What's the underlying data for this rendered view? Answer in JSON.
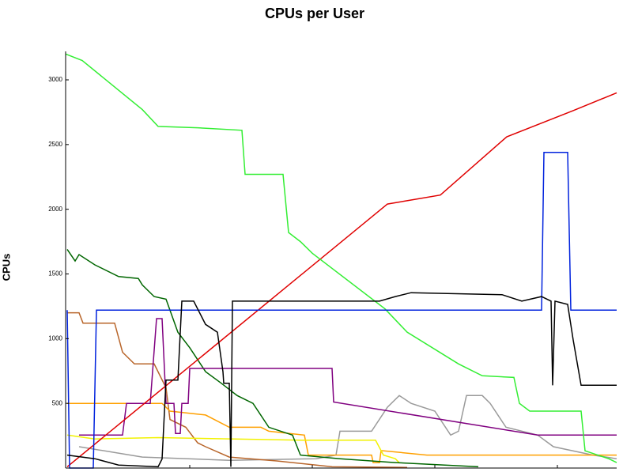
{
  "chart_data": {
    "type": "line",
    "title": "CPUs per User",
    "y_label": "CPUs",
    "xlim": [
      0,
      697
    ],
    "ylim": [
      0,
      3220
    ],
    "yticks": [
      500,
      1000,
      1500,
      2000,
      2500,
      3000
    ],
    "series": [
      {
        "color": "#9a9a9a",
        "x": [
          17,
          97,
          207,
          317,
          342,
          347,
          387,
          407,
          422,
          437,
          467,
          487,
          497,
          507,
          527,
          537,
          557,
          597,
          617,
          667,
          697
        ],
        "values": [
          165,
          85,
          60,
          72,
          100,
          285,
          285,
          470,
          560,
          500,
          440,
          255,
          285,
          560,
          560,
          500,
          315,
          255,
          165,
          100,
          72
        ]
      },
      {
        "color": "#b8652a",
        "x": [
          2,
          17,
          22,
          62,
          72,
          87,
          112,
          127,
          132,
          152,
          167,
          177,
          207,
          267,
          337,
          432
        ],
        "values": [
          1200,
          1200,
          1120,
          1120,
          895,
          805,
          805,
          620,
          375,
          315,
          195,
          165,
          85,
          55,
          10,
          5
        ]
      },
      {
        "color": "#ffa000",
        "x": [
          2,
          122,
          132,
          177,
          207,
          247,
          257,
          302,
          307,
          387,
          389,
          397,
          399,
          457,
          697
        ],
        "values": [
          500,
          500,
          440,
          410,
          315,
          315,
          285,
          255,
          100,
          100,
          42,
          42,
          135,
          100,
          100
        ]
      },
      {
        "color": "#f2f200",
        "x": [
          2,
          37,
          117,
          297,
          392,
          402,
          417,
          422
        ],
        "values": [
          255,
          225,
          235,
          215,
          215,
          100,
          72,
          42
        ]
      },
      {
        "color": "#006600",
        "x": [
          2,
          12,
          17,
          37,
          67,
          92,
          97,
          112,
          127,
          142,
          157,
          177,
          197,
          217,
          237,
          257,
          287,
          297,
          347,
          417,
          522
        ],
        "values": [
          1690,
          1600,
          1650,
          1570,
          1480,
          1465,
          1415,
          1325,
          1305,
          1050,
          930,
          745,
          655,
          560,
          500,
          315,
          255,
          100,
          72,
          42,
          10
        ]
      },
      {
        "color": "#800080",
        "x": [
          17,
          72,
          77,
          107,
          115,
          122,
          127,
          137,
          139,
          145,
          147,
          155,
          157,
          337,
          339,
          597,
          697
        ],
        "values": [
          255,
          255,
          500,
          500,
          1155,
          1155,
          500,
          500,
          267,
          267,
          500,
          500,
          770,
          770,
          510,
          255,
          255
        ]
      },
      {
        "color": "#e00000",
        "x": [
          2,
          407,
          474,
          558,
          641,
          697
        ],
        "values": [
          10,
          2040,
          2110,
          2560,
          2760,
          2900
        ]
      },
      {
        "color": "#33ee33",
        "x": [
          0,
          21,
          97,
          117,
          167,
          223,
          227,
          275,
          282,
          297,
          312,
          404,
          432,
          497,
          527,
          567,
          574,
          587,
          652,
          657,
          687,
          697
        ],
        "values": [
          3200,
          3150,
          2770,
          2640,
          2630,
          2610,
          2270,
          2270,
          1820,
          1750,
          1660,
          1230,
          1050,
          805,
          713,
          700,
          500,
          440,
          440,
          133,
          72,
          42
        ]
      },
      {
        "color": "#0022dd",
        "x": [
          2,
          5,
          35,
          39,
          602,
          605,
          635,
          639,
          697
        ],
        "values": [
          1220,
          0,
          0,
          1220,
          1220,
          2440,
          2440,
          1220,
          1220
        ]
      },
      {
        "color": "#000000",
        "x": [
          2,
          37,
          67,
          117,
          122,
          127,
          142,
          147,
          162,
          177,
          192,
          199,
          200,
          207,
          209,
          211,
          397,
          417,
          437,
          552,
          577,
          602,
          614,
          616,
          619,
          635,
          642,
          652,
          697
        ],
        "values": [
          100,
          72,
          23,
          10,
          70,
          680,
          680,
          1290,
          1290,
          1110,
          1050,
          745,
          655,
          655,
          10,
          1290,
          1290,
          1325,
          1355,
          1340,
          1290,
          1325,
          1290,
          640,
          1290,
          1265,
          990,
          640,
          640
        ]
      }
    ]
  }
}
